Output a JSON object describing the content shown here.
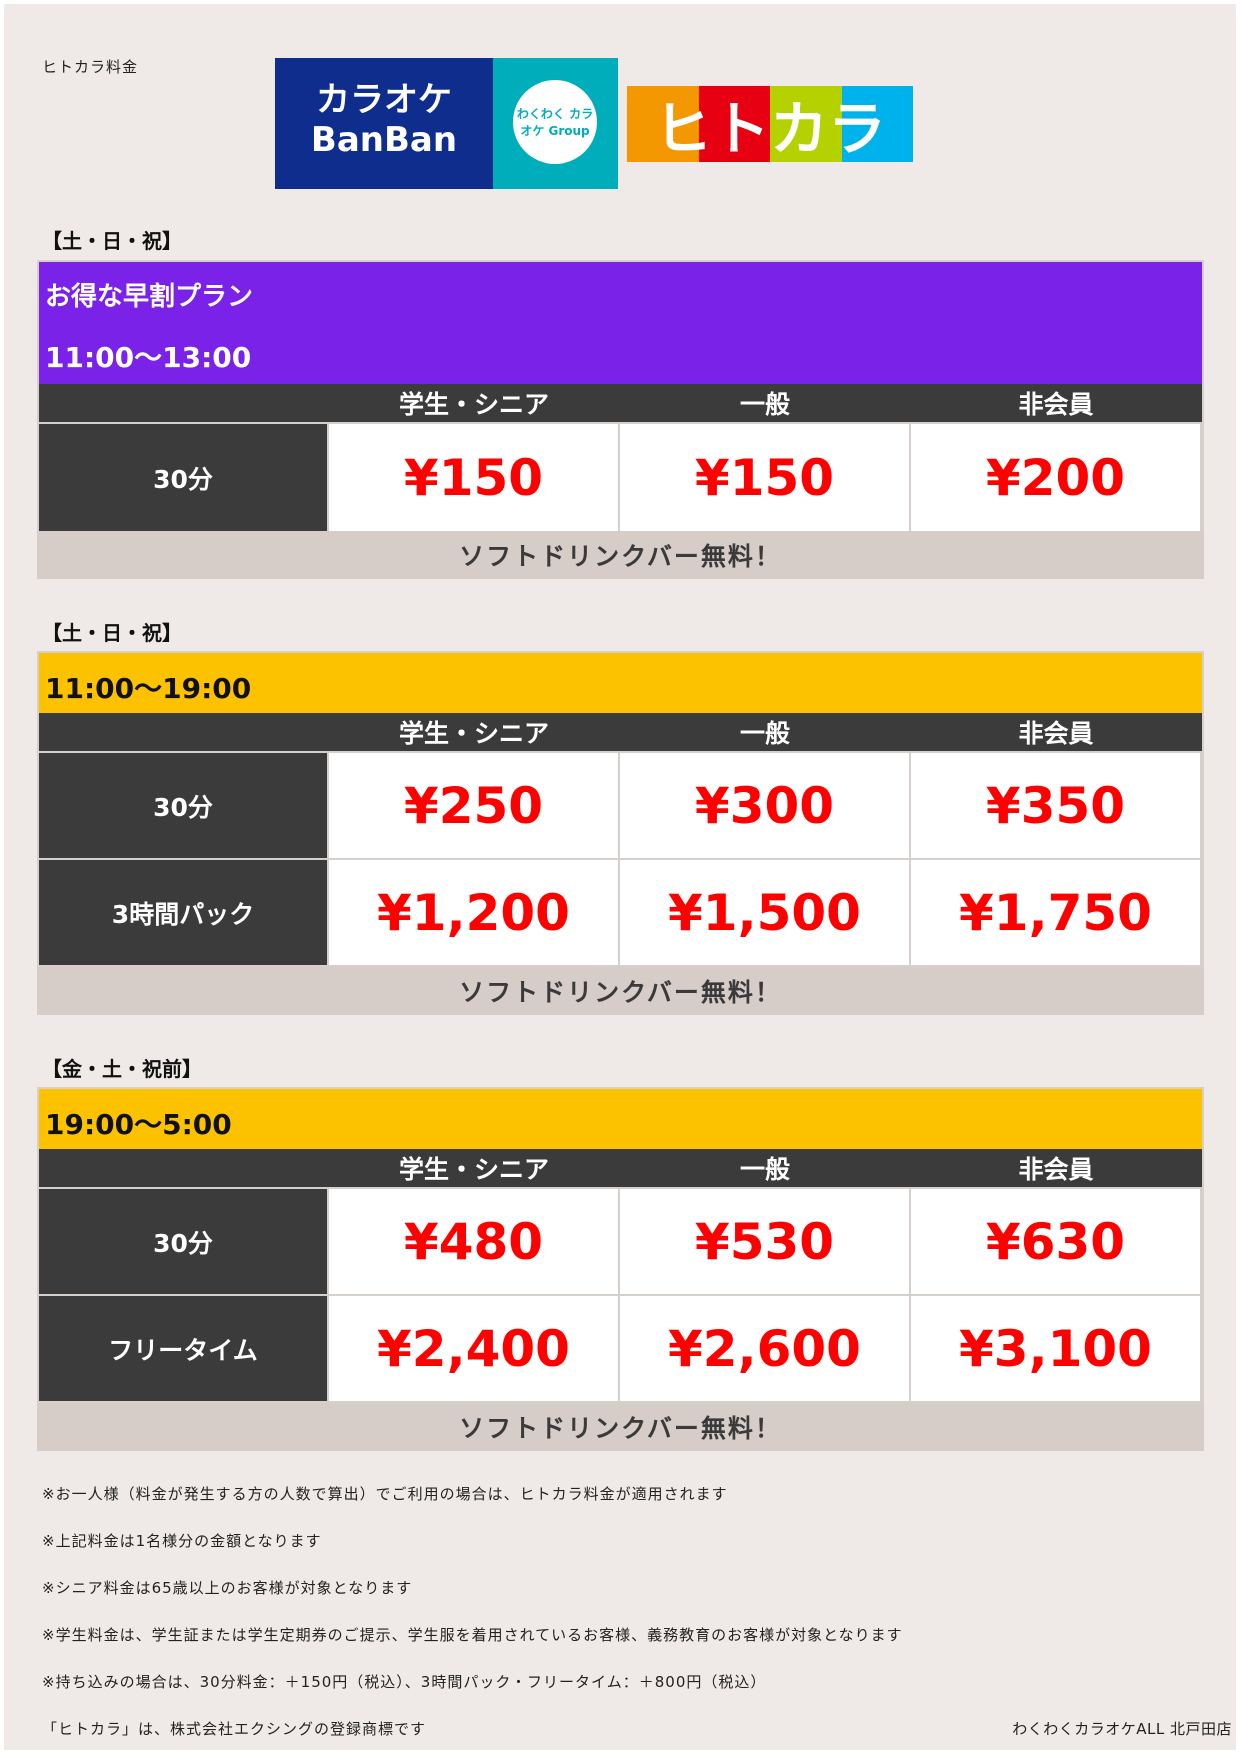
{
  "header": {
    "title": "ヒトカラ料金",
    "logo_banban_text": "カラオケ BanBan",
    "logo_wakuwaku_text": "わくわく カラオケ Group",
    "logo_hitokara_text": "ヒトカラ"
  },
  "columns": [
    "学生・シニア",
    "一般",
    "非会員"
  ],
  "sections": [
    {
      "day_label": "【土・日・祝】",
      "plan": "お得な早割プラン",
      "time": "11:00～13:00",
      "band_color": "#7b22e8",
      "band_text_color": "#ffffff",
      "rows": [
        {
          "label": "30分",
          "prices": [
            "¥150",
            "¥150",
            "¥200"
          ]
        }
      ],
      "footer": "ソフトドリンクバー無料！"
    },
    {
      "day_label": "【土・日・祝】",
      "time": "11:00～19:00",
      "band_color": "#fcc200",
      "band_text_color": "#111111",
      "rows": [
        {
          "label": "30分",
          "prices": [
            "¥250",
            "¥300",
            "¥350"
          ]
        },
        {
          "label": "3時間パック",
          "prices": [
            "¥1,200",
            "¥1,500",
            "¥1,750"
          ]
        }
      ],
      "footer": "ソフトドリンクバー無料！"
    },
    {
      "day_label": "【金・土・祝前】",
      "time": "19:00～5:00",
      "band_color": "#fcc200",
      "band_text_color": "#111111",
      "rows": [
        {
          "label": "30分",
          "prices": [
            "¥480",
            "¥530",
            "¥630"
          ]
        },
        {
          "label": "フリータイム",
          "prices": [
            "¥2,400",
            "¥2,600",
            "¥3,100"
          ]
        }
      ],
      "footer": "ソフトドリンクバー無料！"
    }
  ],
  "notes": [
    "※お一人様（料金が発生する方の人数で算出）でご利用の場合は、ヒトカラ料金が適用されます",
    "※上記料金は1名様分の金額となります",
    "※シニア料金は65歳以上のお客様が対象となります",
    "※学生料金は、学生証または学生定期券のご提示、学生服を着用されているお客様、義務教育のお客様が対象となります",
    "※持ち込みの場合は、30分料金：＋150円（税込）、3時間パック・フリータイム：＋800円（税込）",
    "「ヒトカラ」は、株式会社エクシングの登録商標です"
  ],
  "store_name": "わくわくカラオケALL 北戸田店"
}
